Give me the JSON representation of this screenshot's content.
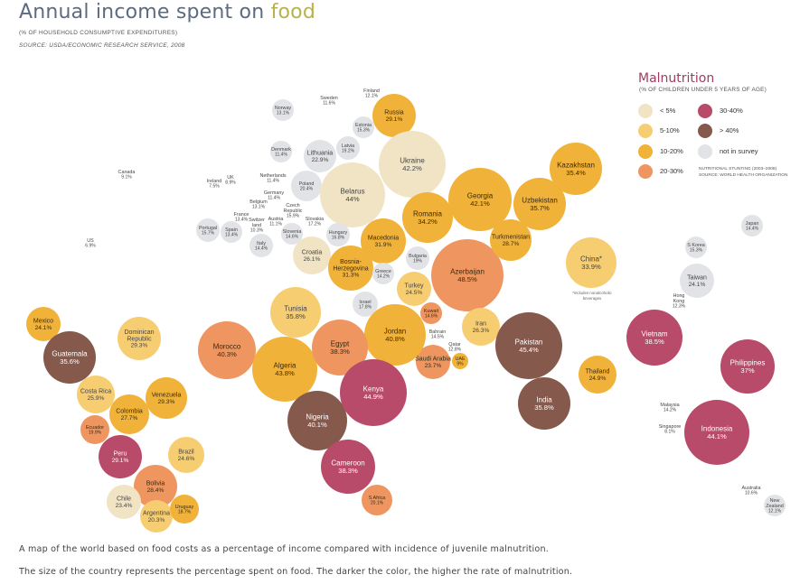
{
  "header": {
    "title_part1": "Annual income spent on ",
    "title_highlight": "food",
    "subtitle": "(% OF HOUSEHOLD CONSUMPTIVE EXPENDITURES)",
    "source": "SOURCE: USDA/ECONOMIC RESEARCH SERVICE, 2008"
  },
  "legend": {
    "title": "Malnutrition",
    "subtitle": "(% OF CHILDREN UNDER 5 YEARS OF AGE)",
    "items": [
      {
        "label": "< 5%",
        "color": "#f0e4c4"
      },
      {
        "label": "5-10%",
        "color": "#f7cd72"
      },
      {
        "label": "10-20%",
        "color": "#f0b238"
      },
      {
        "label": "20-30%",
        "color": "#ee9560"
      },
      {
        "label": "30-40%",
        "color": "#b84a6a"
      },
      {
        "label": "> 40%",
        "color": "#85594c"
      },
      {
        "label": "not in survey",
        "color": "#e1e3e6"
      }
    ],
    "note1": "NUTRITIONAL STUNTING (2003–2008)",
    "note2": "SOURCE: WORLD HEALTH ORGANIZATION"
  },
  "china_note": [
    "*includes nonalcoholic",
    "beverages"
  ],
  "captions": {
    "line1": "A map of the world based on food costs as a percentage of income compared with incidence of juvenile malnutrition.",
    "line2": "The size of the country represents the percentage spent on food. The darker the color, the higher the rate of malnutrition."
  },
  "countries": [
    {
      "name": "Canada",
      "value": "9.1%",
      "cat": 6
    },
    {
      "name": "US",
      "value": "6.9%",
      "cat": 6
    },
    {
      "name": "Mexico",
      "value": "24.1%",
      "cat": 2
    },
    {
      "name": "Guatemala",
      "value": "35.6%",
      "cat": 5
    },
    {
      "name": "Dominican Republic",
      "value": "29.3%",
      "cat": 1
    },
    {
      "name": "Costa Rica",
      "value": "25.9%",
      "cat": 1
    },
    {
      "name": "Colombia",
      "value": "27.7%",
      "cat": 2
    },
    {
      "name": "Venezuela",
      "value": "29.3%",
      "cat": 2
    },
    {
      "name": "Ecuador",
      "value": "19.9%",
      "cat": 3
    },
    {
      "name": "Peru",
      "value": "29.1%",
      "cat": 4
    },
    {
      "name": "Brazil",
      "value": "24.6%",
      "cat": 1
    },
    {
      "name": "Bolivia",
      "value": "28.4%",
      "cat": 3
    },
    {
      "name": "Chile",
      "value": "23.4%",
      "cat": 0
    },
    {
      "name": "Argentina",
      "value": "20.3%",
      "cat": 1
    },
    {
      "name": "Uruguay",
      "value": "18.7%",
      "cat": 2
    },
    {
      "name": "Ireland",
      "value": "7.5%",
      "cat": 6
    },
    {
      "name": "UK",
      "value": "8.9%",
      "cat": 6
    },
    {
      "name": "Norway",
      "value": "13.1%",
      "cat": 6
    },
    {
      "name": "Sweden",
      "value": "11.6%",
      "cat": 6
    },
    {
      "name": "Finland",
      "value": "12.1%",
      "cat": 6
    },
    {
      "name": "Denmark",
      "value": "11.4%",
      "cat": 6
    },
    {
      "name": "Netherlands",
      "value": "11.4%",
      "cat": 6
    },
    {
      "name": "Belgium",
      "value": "13.1%",
      "cat": 6
    },
    {
      "name": "Germany",
      "value": "11.4%",
      "cat": 6
    },
    {
      "name": "France",
      "value": "13.4%",
      "cat": 6
    },
    {
      "name": "Switzerland",
      "value": "10.3%",
      "cat": 6
    },
    {
      "name": "Austria",
      "value": "11.1%",
      "cat": 6
    },
    {
      "name": "Portugal",
      "value": "15.7%",
      "cat": 6
    },
    {
      "name": "Spain",
      "value": "13.4%",
      "cat": 6
    },
    {
      "name": "Italy",
      "value": "14.4%",
      "cat": 6
    },
    {
      "name": "Czech Republic",
      "value": "15.9%",
      "cat": 6
    },
    {
      "name": "Poland",
      "value": "20.4%",
      "cat": 6
    },
    {
      "name": "Lithuania",
      "value": "22.9%",
      "cat": 6
    },
    {
      "name": "Latvia",
      "value": "19.2%",
      "cat": 6
    },
    {
      "name": "Estonia",
      "value": "15.3%",
      "cat": 6
    },
    {
      "name": "Russia",
      "value": "29.1%",
      "cat": 2
    },
    {
      "name": "Belarus",
      "value": "44%",
      "cat": 0
    },
    {
      "name": "Ukraine",
      "value": "42.2%",
      "cat": 0
    },
    {
      "name": "Slovakia",
      "value": "17.2%",
      "cat": 6
    },
    {
      "name": "Slovenia",
      "value": "14.6%",
      "cat": 6
    },
    {
      "name": "Hungary",
      "value": "16.8%",
      "cat": 6
    },
    {
      "name": "Croatia",
      "value": "26.1%",
      "cat": 0
    },
    {
      "name": "Macedonia",
      "value": "31.9%",
      "cat": 2
    },
    {
      "name": "Romania",
      "value": "34.2%",
      "cat": 2
    },
    {
      "name": "Bulgaria",
      "value": "19%",
      "cat": 6
    },
    {
      "name": "Bosnia-Herzegovina",
      "value": "31.3%",
      "cat": 2
    },
    {
      "name": "Greece",
      "value": "14.2%",
      "cat": 6
    },
    {
      "name": "Turkey",
      "value": "24.5%",
      "cat": 1
    },
    {
      "name": "Georgia",
      "value": "42.1%",
      "cat": 2
    },
    {
      "name": "Azerbaijan",
      "value": "48.5%",
      "cat": 3
    },
    {
      "name": "Kazakhstan",
      "value": "35.4%",
      "cat": 2
    },
    {
      "name": "Uzbekistan",
      "value": "35.7%",
      "cat": 2
    },
    {
      "name": "Turkmenistan",
      "value": "28.7%",
      "cat": 2
    },
    {
      "name": "Israel",
      "value": "17.8%",
      "cat": 6
    },
    {
      "name": "Kuwait",
      "value": "14.6%",
      "cat": 3
    },
    {
      "name": "Bahrain",
      "value": "14.5%",
      "cat": 1
    },
    {
      "name": "Qatar",
      "value": "12.8%",
      "cat": 1
    },
    {
      "name": "UAE",
      "value": "9%",
      "cat": 2
    },
    {
      "name": "Saudi Arabia",
      "value": "23.7%",
      "cat": 3
    },
    {
      "name": "Iran",
      "value": "26.3%",
      "cat": 1
    },
    {
      "name": "Jordan",
      "value": "40.8%",
      "cat": 2
    },
    {
      "name": "Tunisia",
      "value": "35.8%",
      "cat": 1
    },
    {
      "name": "Morocco",
      "value": "40.3%",
      "cat": 3
    },
    {
      "name": "Algeria",
      "value": "43.8%",
      "cat": 2
    },
    {
      "name": "Egypt",
      "value": "38.3%",
      "cat": 3
    },
    {
      "name": "Nigeria",
      "value": "40.1%",
      "cat": 5
    },
    {
      "name": "Kenya",
      "value": "44.9%",
      "cat": 4
    },
    {
      "name": "Cameroon",
      "value": "38.3%",
      "cat": 4
    },
    {
      "name": "S Africa",
      "value": "20.1%",
      "cat": 3
    },
    {
      "name": "Pakistan",
      "value": "45.4%",
      "cat": 5
    },
    {
      "name": "India",
      "value": "35.8%",
      "cat": 5
    },
    {
      "name": "China*",
      "value": "33.9%",
      "cat": 1
    },
    {
      "name": "Japan",
      "value": "14.4%",
      "cat": 6
    },
    {
      "name": "S Korea",
      "value": "15.3%",
      "cat": 6
    },
    {
      "name": "Taiwan",
      "value": "24.1%",
      "cat": 6
    },
    {
      "name": "Hong Kong",
      "value": "12.3%",
      "cat": 6
    },
    {
      "name": "Vietnam",
      "value": "38.5%",
      "cat": 4
    },
    {
      "name": "Thailand",
      "value": "24.9%",
      "cat": 2
    },
    {
      "name": "Philippines",
      "value": "37%",
      "cat": 4
    },
    {
      "name": "Malaysia",
      "value": "14.2%",
      "cat": 6
    },
    {
      "name": "Singapore",
      "value": "8.1%",
      "cat": 6
    },
    {
      "name": "Indonesia",
      "value": "44.1%",
      "cat": 4
    },
    {
      "name": "Australia",
      "value": "10.6%",
      "cat": 6
    },
    {
      "name": "New Zealand",
      "value": "12.1%",
      "cat": 6
    }
  ]
}
